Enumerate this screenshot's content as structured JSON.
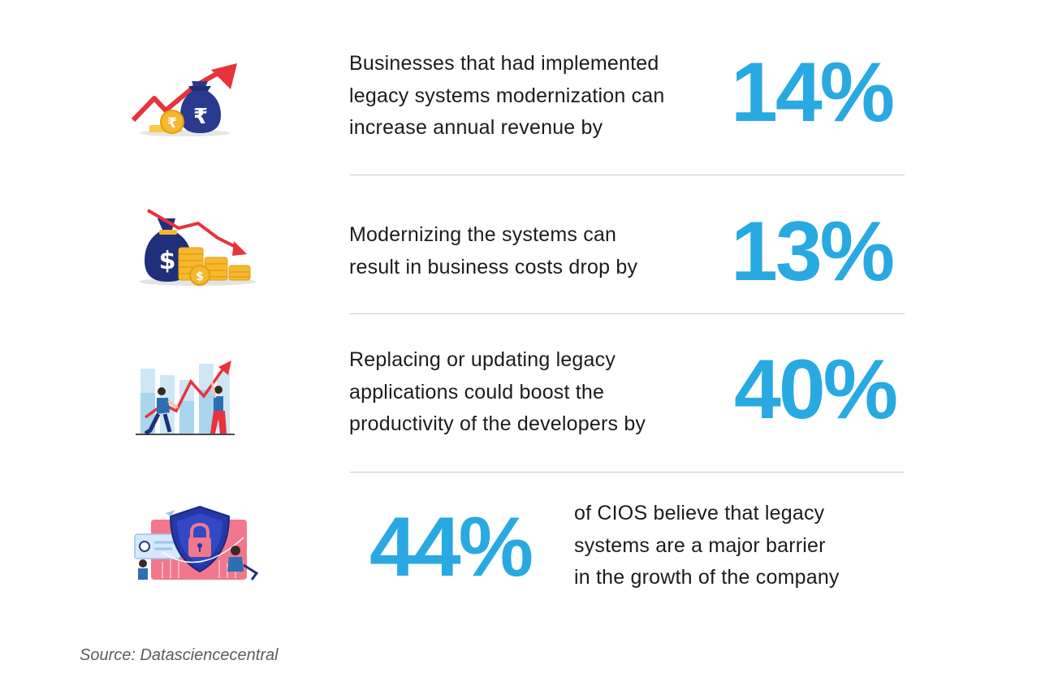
{
  "stats": [
    {
      "icon": "revenue-growth-rupee-bag-icon",
      "lines": [
        "Businesses that had implemented",
        "legacy systems modernization can",
        "increase annual revenue by"
      ],
      "value": "14%"
    },
    {
      "icon": "cost-drop-dollar-bag-icon",
      "lines": [
        "Modernizing the systems can",
        "result in business costs drop by"
      ],
      "value": "13%"
    },
    {
      "icon": "productivity-chart-people-icon",
      "lines": [
        "Replacing or updating legacy",
        "applications could boost the",
        "productivity of the developers by"
      ],
      "value": "40%"
    },
    {
      "icon": "security-shield-lock-icon",
      "lines": [
        "of CIOS believe that legacy",
        "systems are a major barrier",
        "in the growth of the company"
      ],
      "value": "44%"
    }
  ],
  "source": "Source: Datasciencecentral",
  "colors": {
    "accent": "#28a9e1",
    "text": "#1c1c1c",
    "divider": "#c9c9c9",
    "red_arrow": "#e8323c",
    "navy": "#1f2f7a",
    "gold": "#f5b82e"
  }
}
